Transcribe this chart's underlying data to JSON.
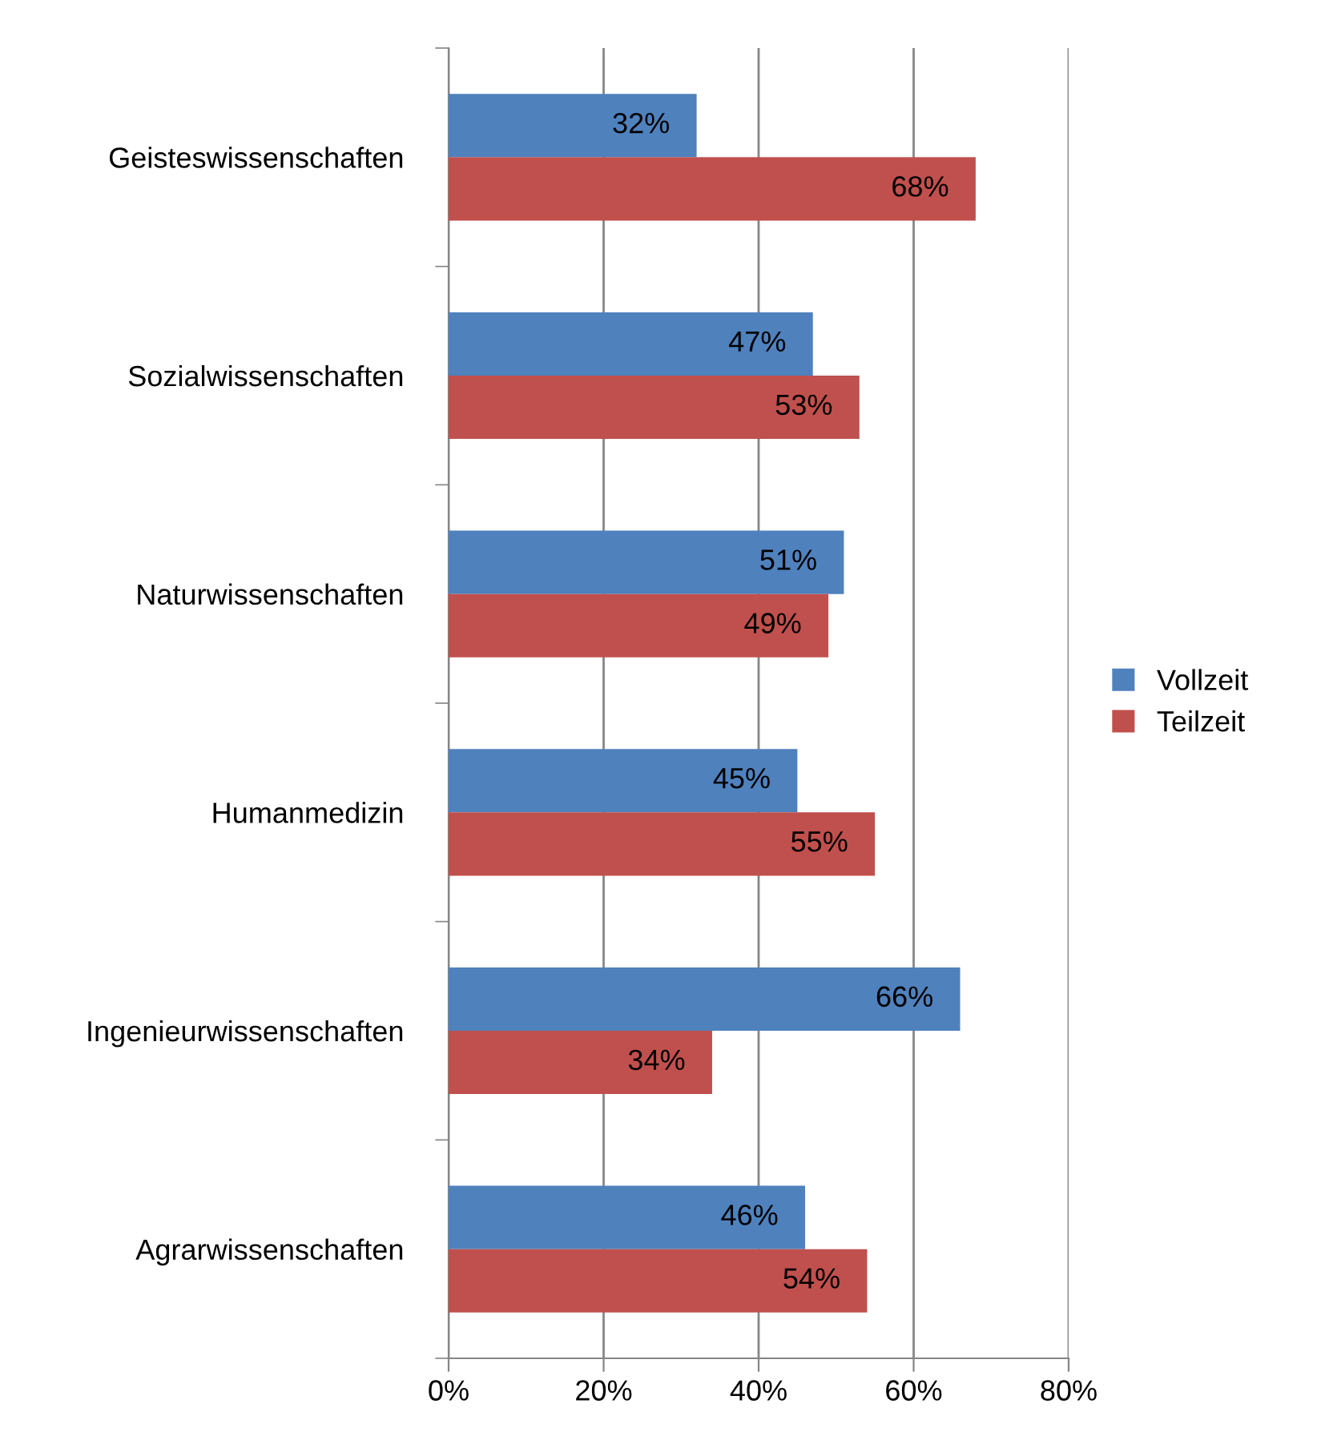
{
  "chart_data": {
    "type": "bar",
    "orientation": "horizontal",
    "categories": [
      "Geisteswissenschaften",
      "Sozialwissenschaften",
      "Naturwissenschaften",
      "Humanmedizin",
      "Ingenieurwissenschaften",
      "Agrarwissenschaften"
    ],
    "series": [
      {
        "name": "Vollzeit",
        "color": "#4f81bd",
        "values": [
          32,
          47,
          51,
          45,
          66,
          46
        ],
        "value_labels": [
          "32%",
          "47%",
          "51%",
          "45%",
          "66%",
          "46%"
        ]
      },
      {
        "name": "Teilzeit",
        "color": "#c0504d",
        "values": [
          68,
          53,
          49,
          55,
          34,
          54
        ],
        "value_labels": [
          "68%",
          "53%",
          "49%",
          "55%",
          "34%",
          "54%"
        ]
      }
    ],
    "xlim": [
      0,
      80
    ],
    "xticks": [
      {
        "value": 0,
        "label": "0%"
      },
      {
        "value": 20,
        "label": "20%"
      },
      {
        "value": 40,
        "label": "40%"
      },
      {
        "value": 60,
        "label": "60%"
      },
      {
        "value": 80,
        "label": "80%"
      }
    ],
    "grid": "x",
    "legend": "right"
  }
}
